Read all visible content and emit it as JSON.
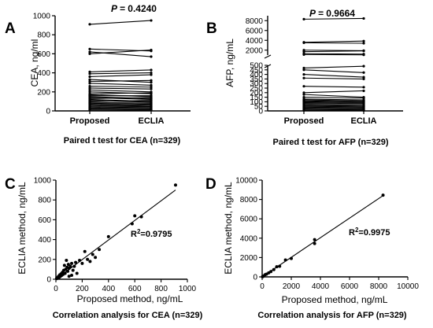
{
  "panels": {
    "A": {
      "letter": "A",
      "caption": "Paired t test for CEA (n=329)",
      "ylabel": "CEA, ng/ml",
      "pvalue": "0.4240",
      "p_prefix": "P = ",
      "categories": [
        "Proposed",
        "ECLIA"
      ]
    },
    "B": {
      "letter": "B",
      "caption": "Paired t test for AFP (n=329)",
      "ylabel": "AFP, ng/mL",
      "pvalue": "0.9664",
      "p_prefix": "P = ",
      "categories": [
        "Proposed",
        "ECLIA"
      ]
    },
    "C": {
      "letter": "C",
      "caption": "Correlation analysis for CEA (n=329)",
      "xlabel": "Proposed method, ng/mL",
      "ylabel": "ECLIA method, ng/mL",
      "r2_prefix": "R",
      "r2_value": "=0.9795"
    },
    "D": {
      "letter": "D",
      "caption": "Correlation analysis for AFP (n=329)",
      "xlabel": "Proposed method, ng/mL",
      "ylabel": "ECLIA method, ng/mL",
      "r2_prefix": "R",
      "r2_value": "=0.9975"
    }
  },
  "chart_data": [
    {
      "panel": "A",
      "type": "line",
      "title": "Paired t test for CEA (n=329)",
      "ylabel": "CEA, ng/ml",
      "ylim": [
        0,
        1000
      ],
      "yticks": [
        0,
        200,
        400,
        600,
        800,
        1000
      ],
      "categories": [
        "Proposed",
        "ECLIA"
      ],
      "pairs": [
        [
          910,
          950
        ],
        [
          650,
          630
        ],
        [
          620,
          570
        ],
        [
          600,
          640
        ],
        [
          410,
          430
        ],
        [
          390,
          400
        ],
        [
          360,
          380
        ],
        [
          330,
          300
        ],
        [
          310,
          320
        ],
        [
          290,
          270
        ],
        [
          260,
          250
        ],
        [
          240,
          230
        ],
        [
          220,
          200
        ],
        [
          200,
          180
        ],
        [
          180,
          190
        ],
        [
          170,
          150
        ],
        [
          160,
          160
        ],
        [
          150,
          130
        ],
        [
          140,
          120
        ],
        [
          130,
          140
        ],
        [
          120,
          100
        ],
        [
          110,
          90
        ],
        [
          100,
          110
        ],
        [
          90,
          80
        ],
        [
          80,
          70
        ],
        [
          70,
          60
        ],
        [
          60,
          50
        ],
        [
          50,
          45
        ],
        [
          40,
          35
        ],
        [
          30,
          25
        ],
        [
          20,
          15
        ],
        [
          10,
          8
        ]
      ],
      "annotation": "P = 0.4240"
    },
    {
      "panel": "B",
      "type": "line",
      "title": "Paired t test for AFP (n=329)",
      "ylabel": "AFP, ng/mL",
      "ylim_lower": [
        0,
        500
      ],
      "ylim_upper": [
        1000,
        9000
      ],
      "yticks": [
        0,
        50,
        100,
        150,
        200,
        250,
        300,
        350,
        400,
        450,
        500,
        2000,
        4000,
        6000,
        8000
      ],
      "categories": [
        "Proposed",
        "ECLIA"
      ],
      "pairs": [
        [
          8300,
          8450
        ],
        [
          3600,
          3850
        ],
        [
          3500,
          3400
        ],
        [
          2000,
          1900
        ],
        [
          1700,
          1850
        ],
        [
          1300,
          1200
        ],
        [
          1100,
          1050
        ],
        [
          470,
          490
        ],
        [
          450,
          420
        ],
        [
          400,
          370
        ],
        [
          360,
          350
        ],
        [
          270,
          260
        ],
        [
          200,
          220
        ],
        [
          180,
          150
        ],
        [
          150,
          140
        ],
        [
          130,
          120
        ],
        [
          120,
          110
        ],
        [
          110,
          100
        ],
        [
          100,
          95
        ],
        [
          90,
          85
        ],
        [
          80,
          75
        ],
        [
          70,
          60
        ],
        [
          60,
          55
        ],
        [
          50,
          45
        ],
        [
          40,
          35
        ],
        [
          30,
          25
        ],
        [
          20,
          15
        ],
        [
          10,
          8
        ],
        [
          5,
          4
        ]
      ],
      "annotation": "P = 0.9664"
    },
    {
      "panel": "C",
      "type": "scatter",
      "title": "Correlation analysis for CEA (n=329)",
      "xlabel": "Proposed method, ng/mL",
      "ylabel": "ECLIA method, ng/mL",
      "xlim": [
        0,
        1000
      ],
      "ylim": [
        0,
        1000
      ],
      "xticks": [
        0,
        200,
        400,
        600,
        800,
        1000
      ],
      "yticks": [
        0,
        200,
        400,
        600,
        800,
        1000
      ],
      "points": [
        [
          910,
          950
        ],
        [
          650,
          630
        ],
        [
          600,
          640
        ],
        [
          580,
          560
        ],
        [
          400,
          430
        ],
        [
          330,
          300
        ],
        [
          300,
          220
        ],
        [
          280,
          250
        ],
        [
          260,
          180
        ],
        [
          240,
          200
        ],
        [
          220,
          280
        ],
        [
          200,
          160
        ],
        [
          180,
          190
        ],
        [
          150,
          170
        ],
        [
          140,
          130
        ],
        [
          130,
          90
        ],
        [
          120,
          160
        ],
        [
          110,
          130
        ],
        [
          100,
          110
        ],
        [
          95,
          150
        ],
        [
          90,
          80
        ],
        [
          85,
          120
        ],
        [
          80,
          190
        ],
        [
          75,
          100
        ],
        [
          70,
          60
        ],
        [
          65,
          140
        ],
        [
          60,
          90
        ],
        [
          55,
          50
        ],
        [
          50,
          70
        ],
        [
          45,
          40
        ],
        [
          40,
          55
        ],
        [
          35,
          30
        ],
        [
          30,
          45
        ],
        [
          25,
          20
        ],
        [
          20,
          30
        ],
        [
          15,
          12
        ],
        [
          10,
          15
        ],
        [
          5,
          6
        ],
        [
          120,
          40
        ],
        [
          160,
          60
        ],
        [
          100,
          30
        ]
      ],
      "fit_line": {
        "x": [
          0,
          910
        ],
        "y": [
          0,
          900
        ]
      },
      "annotation": "R2=0.9795"
    },
    {
      "panel": "D",
      "type": "scatter",
      "title": "Correlation analysis for AFP (n=329)",
      "xlabel": "Proposed method, ng/mL",
      "ylabel": "ECLIA method, ng/mL",
      "xlim": [
        0,
        10000
      ],
      "ylim": [
        0,
        10000
      ],
      "xticks": [
        0,
        2000,
        4000,
        6000,
        8000,
        10000
      ],
      "yticks": [
        0,
        2000,
        4000,
        6000,
        8000,
        10000
      ],
      "points": [
        [
          8300,
          8450
        ],
        [
          3600,
          3850
        ],
        [
          3600,
          3450
        ],
        [
          2000,
          1900
        ],
        [
          1600,
          1750
        ],
        [
          1200,
          1100
        ],
        [
          1000,
          1050
        ],
        [
          800,
          750
        ],
        [
          600,
          550
        ],
        [
          450,
          420
        ],
        [
          300,
          280
        ],
        [
          200,
          220
        ],
        [
          100,
          90
        ],
        [
          50,
          40
        ],
        [
          20,
          15
        ]
      ],
      "fit_line": {
        "x": [
          0,
          8300
        ],
        "y": [
          0,
          8400
        ]
      },
      "annotation": "R2=0.9975"
    }
  ]
}
